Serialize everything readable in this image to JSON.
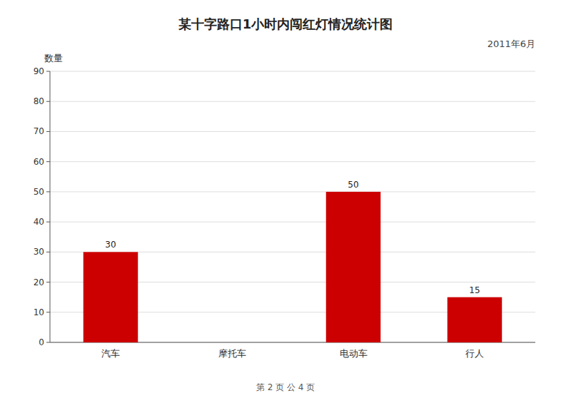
{
  "chart_data": {
    "type": "bar",
    "title": "某十字路口1小时内闯红灯情况统计图",
    "subtitle": "2011年6月",
    "y_label": "数量",
    "categories": [
      "汽车",
      "摩托车",
      "电动车",
      "行人"
    ],
    "values": [
      30,
      0,
      50,
      15
    ],
    "color": "#cc0000",
    "ylim": [
      0,
      90
    ],
    "yticks": [
      0,
      10,
      20,
      30,
      40,
      50,
      60,
      70,
      80,
      90
    ],
    "grid": true,
    "data_labels": true,
    "annotations": [
      "第 2 页 公 4 页"
    ]
  }
}
